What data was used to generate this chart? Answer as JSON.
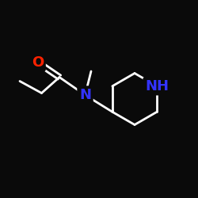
{
  "background_color": "#0a0a0a",
  "bond_color": "#ffffff",
  "atom_colors": {
    "O": "#ff2200",
    "N_amide": "#3333ff",
    "N_pip": "#3333ff",
    "C": "#ffffff"
  },
  "bond_width": 2.0,
  "font_size_labels": 13,
  "figsize": [
    2.5,
    2.5
  ],
  "dpi": 100
}
